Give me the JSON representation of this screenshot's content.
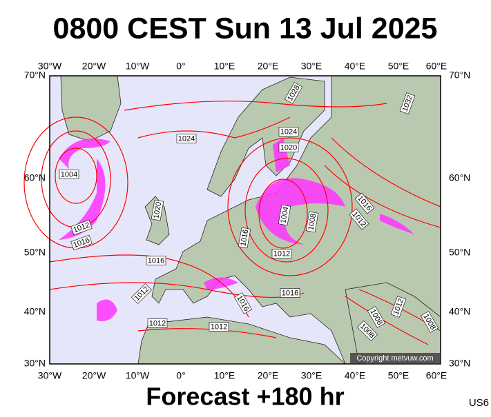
{
  "header": {
    "title": "0800 CEST Sun 13 Jul 2025"
  },
  "map": {
    "lon_labels": [
      "30°W",
      "20°W",
      "10°W",
      "0°",
      "10°E",
      "20°E",
      "30°E",
      "40°E",
      "50°E",
      "60°E"
    ],
    "lat_labels": [
      "70°N",
      "60°N",
      "50°N",
      "40°N",
      "30°N"
    ],
    "isobar_labels": [
      "1028",
      "1032",
      "1024",
      "1024",
      "1020",
      "1004",
      "1004",
      "1008",
      "1012",
      "1016",
      "1020",
      "1016",
      "1012",
      "1016",
      "1016",
      "1012",
      "1012",
      "1016",
      "1016",
      "1012",
      "1012",
      "1008",
      "1012",
      "1008",
      "1008"
    ],
    "copyright": "Copyright metvuw.com"
  },
  "footer": {
    "forecast": "Forecast +180 hr",
    "code": "US6"
  }
}
